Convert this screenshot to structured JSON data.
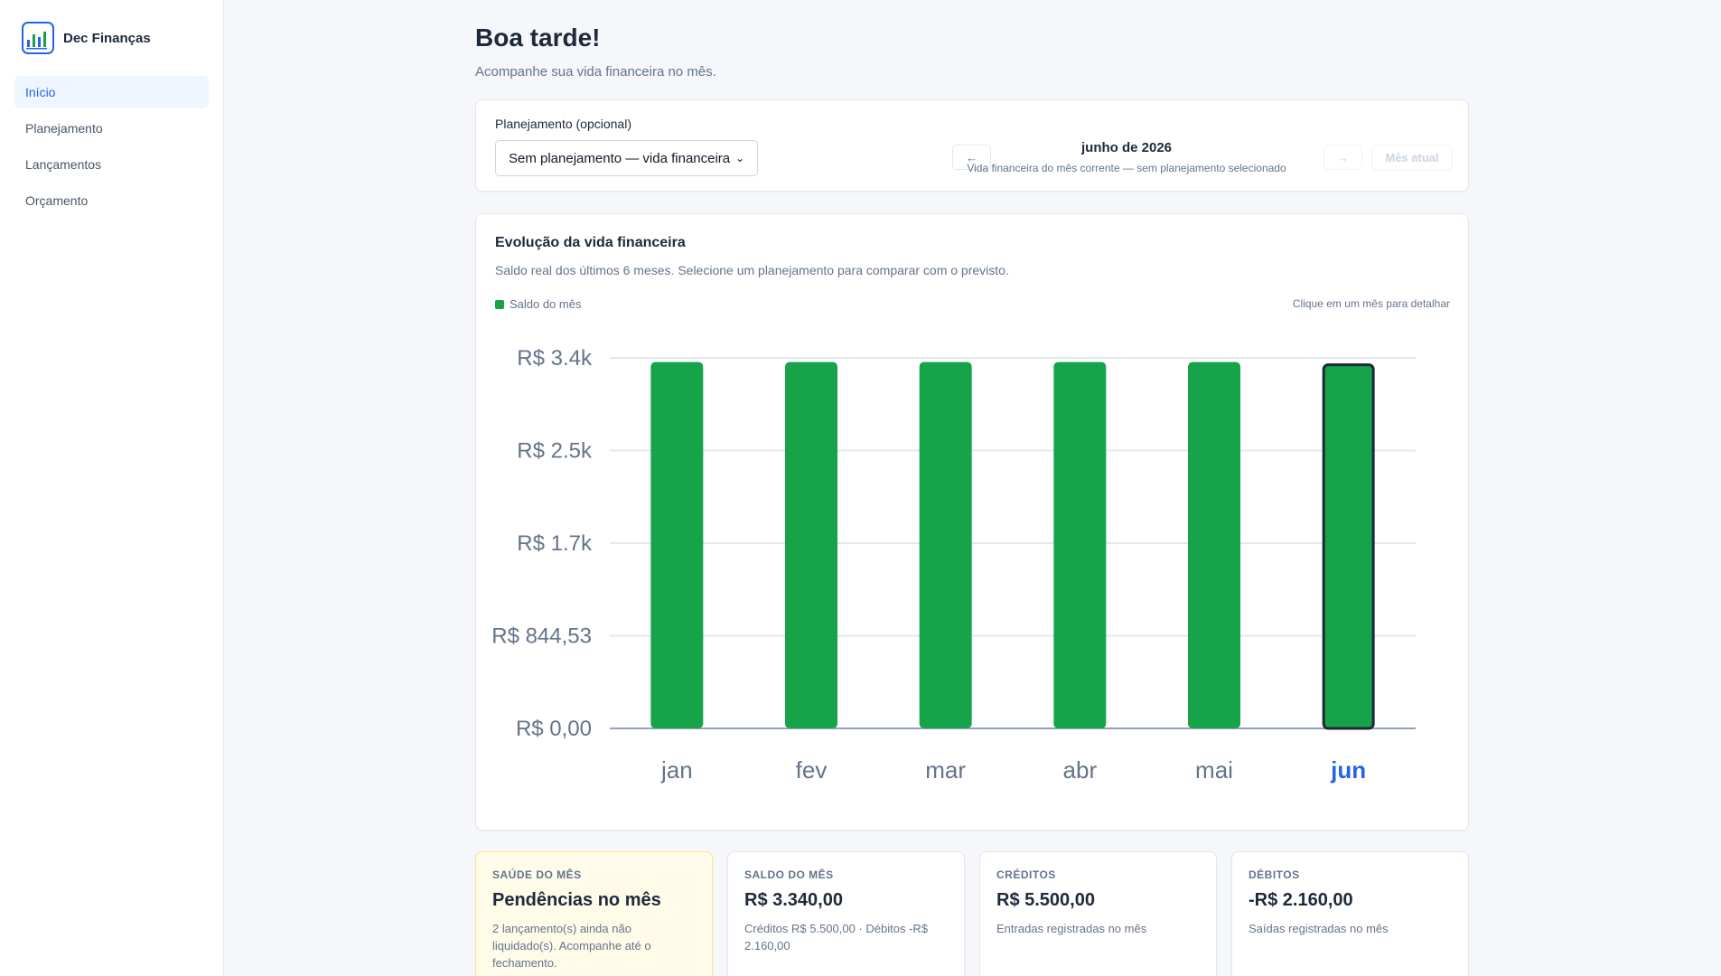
{
  "app": {
    "name": "Dec Finanças"
  },
  "sidebar": {
    "items": [
      {
        "label": "Início",
        "active": true
      },
      {
        "label": "Planejamento",
        "active": false
      },
      {
        "label": "Lançamentos",
        "active": false
      },
      {
        "label": "Orçamento",
        "active": false
      }
    ]
  },
  "header": {
    "greeting": "Boa tarde!",
    "subtitle": "Acompanhe sua vida financeira no mês."
  },
  "planning": {
    "label": "Planejamento (opcional)",
    "selected": "Sem planejamento — vida financeira",
    "prev_label": "←",
    "next_label": "→",
    "month_title": "junho de 2026",
    "month_subtitle": "Vida financeira do mês corrente — sem planejamento selecionado",
    "current_month_label": "Mês atual"
  },
  "chart_section": {
    "title": "Evolução da vida financeira",
    "description": "Saldo real dos últimos 6 meses. Selecione um planejamento para comparar com o previsto.",
    "hint": "Clique em um mês para detalhar"
  },
  "chart_data": {
    "type": "bar",
    "categories": [
      "jan",
      "fev",
      "mar",
      "abr",
      "mai",
      "jun"
    ],
    "series": [
      {
        "name": "Saldo do mês",
        "values": [
          3340,
          3340,
          3340,
          3340,
          3340,
          3340
        ]
      }
    ],
    "selected_category": "jun",
    "ylim": [
      0,
      3378.12
    ],
    "yticks": [
      {
        "value": 0,
        "label": "R$ 0,00"
      },
      {
        "value": 844.53,
        "label": "R$ 844,53"
      },
      {
        "value": 1689.06,
        "label": "R$ 1.7k"
      },
      {
        "value": 2533.59,
        "label": "R$ 2.5k"
      },
      {
        "value": 3378.12,
        "label": "R$ 3.4k"
      }
    ],
    "grid": true,
    "legend_position": "top-left",
    "colors": {
      "bar": "#16a34a",
      "selected_outline": "#1e293b",
      "selected_label": "#2563eb"
    }
  },
  "stats": [
    {
      "label": "SAÚDE DO MÊS",
      "value": "Pendências no mês",
      "note": "2 lançamento(s) ainda não liquidado(s). Acompanhe até o fechamento."
    },
    {
      "label": "SALDO DO MÊS",
      "value": "R$ 3.340,00",
      "note": "Créditos R$ 5.500,00 · Débitos -R$ 2.160,00"
    },
    {
      "label": "CRÉDITOS",
      "value": "R$ 5.500,00",
      "note": "Entradas registradas no mês"
    },
    {
      "label": "DÉBITOS",
      "value": "-R$ 2.160,00",
      "note": "Saídas registradas no mês"
    }
  ]
}
